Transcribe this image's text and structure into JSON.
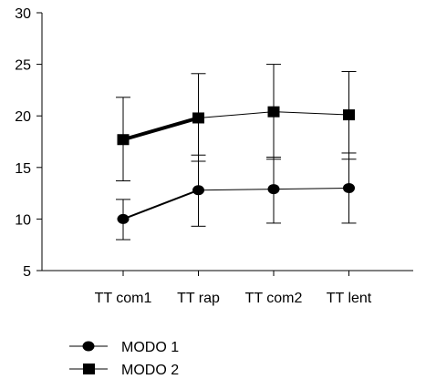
{
  "chart_data": {
    "type": "line",
    "categories": [
      "TT com1",
      "TT rap",
      "TT com2",
      "TT lent"
    ],
    "y_ticks": [
      5,
      10,
      15,
      20,
      25,
      30
    ],
    "ylim": [
      5,
      30
    ],
    "grid": false,
    "legend_position": "bottom-left",
    "series": [
      {
        "name": "MODO 1",
        "marker": "circle",
        "color": "#000000",
        "values": [
          10.0,
          12.8,
          12.9,
          13.0
        ],
        "error_low": [
          8.0,
          9.3,
          9.6,
          9.6
        ],
        "error_high": [
          11.9,
          16.2,
          16.0,
          16.4
        ]
      },
      {
        "name": "MODO 2",
        "marker": "square",
        "color": "#000000",
        "values": [
          17.7,
          19.8,
          20.4,
          20.1
        ],
        "error_low": [
          13.7,
          15.6,
          15.8,
          15.8
        ],
        "error_high": [
          21.8,
          24.1,
          25.0,
          24.3
        ]
      }
    ]
  }
}
